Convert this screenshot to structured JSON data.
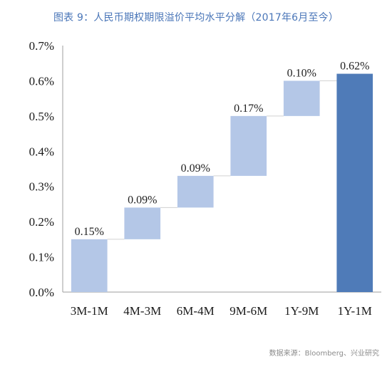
{
  "caption": "图表 9：人民币期权期限溢价平均水平分解（2017年6月至今）",
  "source": "数据来源：Bloomberg、兴业研究",
  "colors": {
    "step_bar": "#b4c7e7",
    "total_bar": "#4f7bb8",
    "connector": "#d0d0d0",
    "axis": "#9e9e9e"
  },
  "chart_data": {
    "type": "bar",
    "subtype": "waterfall",
    "categories": [
      "3M-1M",
      "4M-3M",
      "6M-4M",
      "9M-6M",
      "1Y-9M",
      "1Y-1M"
    ],
    "increments": [
      0.15,
      0.09,
      0.09,
      0.17,
      0.1,
      0.62
    ],
    "bases": [
      0.0,
      0.15,
      0.24,
      0.33,
      0.5,
      0.0
    ],
    "data_labels": [
      "0.15%",
      "0.09%",
      "0.09%",
      "0.17%",
      "0.10%",
      "0.62%"
    ],
    "total_index": 5,
    "ylim": [
      0,
      0.7
    ],
    "yticks": [
      0.0,
      0.1,
      0.2,
      0.3,
      0.4,
      0.5,
      0.6,
      0.7
    ],
    "ytick_labels": [
      "0.0%",
      "0.1%",
      "0.2%",
      "0.3%",
      "0.4%",
      "0.5%",
      "0.6%",
      "0.7%"
    ],
    "grid": false,
    "legend": "none"
  }
}
